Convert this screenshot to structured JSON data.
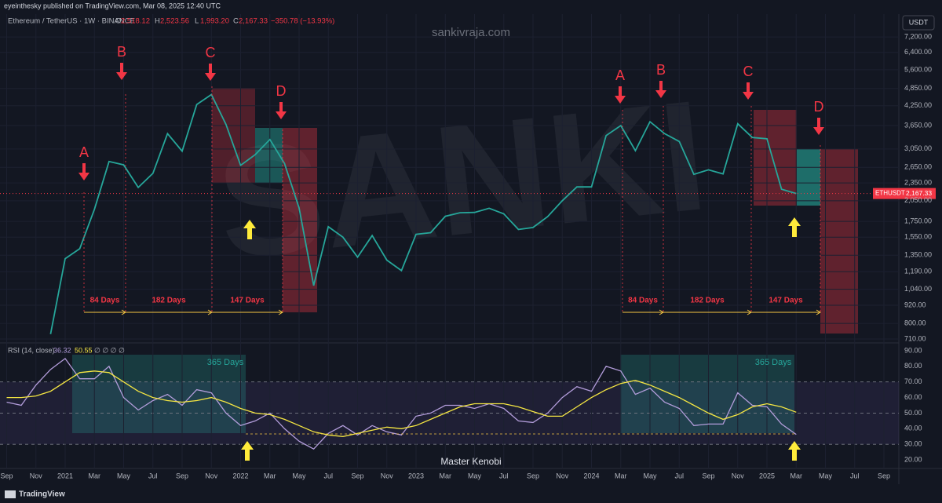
{
  "header": {
    "published": "eyeinthesky published on TradingView.com, Mar 08, 2025 12:40 UTC",
    "symbol": "Ethereum / TetherUS · 1W · BINANCE",
    "ohlc": [
      {
        "key": "O",
        "value": "2,518.12"
      },
      {
        "key": "H",
        "value": "2,523.56"
      },
      {
        "key": "L",
        "value": "1,993.20"
      },
      {
        "key": "C",
        "value": "2,167.33"
      }
    ],
    "change": "−350.78 (−13.93%)",
    "watermark": "sankivraja.com",
    "big_watermark": "SANKI",
    "currency": "USDT",
    "logo": "TradingView"
  },
  "chart_data": [
    {
      "type": "line",
      "log_scale": true,
      "grid": true,
      "x": [
        "2020-12",
        "2021-01",
        "2021-02",
        "2021-03",
        "2021-04",
        "2021-05",
        "2021-06",
        "2021-07",
        "2021-08",
        "2021-09",
        "2021-10",
        "2021-11",
        "2021-12",
        "2022-01",
        "2022-02",
        "2022-03",
        "2022-04",
        "2022-05",
        "2022-06",
        "2022-07",
        "2022-08",
        "2022-09",
        "2022-10",
        "2022-11",
        "2022-12",
        "2023-01",
        "2023-02",
        "2023-03",
        "2023-04",
        "2023-05",
        "2023-06",
        "2023-07",
        "2023-08",
        "2023-09",
        "2023-10",
        "2023-11",
        "2023-12",
        "2024-01",
        "2024-02",
        "2024-03",
        "2024-04",
        "2024-05",
        "2024-06",
        "2024-07",
        "2024-08",
        "2024-09",
        "2024-10",
        "2024-11",
        "2024-12",
        "2025-01",
        "2025-02",
        "2025-03"
      ],
      "series": [
        {
          "name": "ETHUSDT",
          "color": "#26a69a",
          "values": [
            737,
            1315,
            1420,
            1920,
            2770,
            2700,
            2270,
            2530,
            3430,
            3000,
            4290,
            4630,
            3680,
            2690,
            2920,
            3280,
            2730,
            1940,
            1070,
            1680,
            1550,
            1330,
            1570,
            1300,
            1200,
            1585,
            1605,
            1820,
            1870,
            1875,
            1935,
            1855,
            1645,
            1670,
            1815,
            2050,
            2280,
            2280,
            3380,
            3650,
            3010,
            3760,
            3430,
            3230,
            2510,
            2600,
            2520,
            3700,
            3330,
            3300,
            2240,
            2167.33
          ]
        }
      ],
      "price_label": {
        "value": 2167.33,
        "label": "2,167.33"
      },
      "xlim": [
        "2020-09",
        "2025-09"
      ],
      "xticks": [
        {
          "value": "2020-09",
          "label": "Sep"
        },
        {
          "value": "2020-11",
          "label": "Nov"
        },
        {
          "value": "2021-01",
          "label": "2021"
        },
        {
          "value": "2021-03",
          "label": "Mar"
        },
        {
          "value": "2021-05",
          "label": "May"
        },
        {
          "value": "2021-07",
          "label": "Jul"
        },
        {
          "value": "2021-09",
          "label": "Sep"
        },
        {
          "value": "2021-11",
          "label": "Nov"
        },
        {
          "value": "2022-01",
          "label": "2022"
        },
        {
          "value": "2022-03",
          "label": "Mar"
        },
        {
          "value": "2022-05",
          "label": "May"
        },
        {
          "value": "2022-07",
          "label": "Jul"
        },
        {
          "value": "2022-09",
          "label": "Sep"
        },
        {
          "value": "2022-11",
          "label": "Nov"
        },
        {
          "value": "2023-01",
          "label": "2023"
        },
        {
          "value": "2023-03",
          "label": "Mar"
        },
        {
          "value": "2023-05",
          "label": "May"
        },
        {
          "value": "2023-07",
          "label": "Jul"
        },
        {
          "value": "2023-09",
          "label": "Sep"
        },
        {
          "value": "2023-11",
          "label": "Nov"
        },
        {
          "value": "2024-01",
          "label": "2024"
        },
        {
          "value": "2024-03",
          "label": "Mar"
        },
        {
          "value": "2024-05",
          "label": "May"
        },
        {
          "value": "2024-07",
          "label": "Jul"
        },
        {
          "value": "2024-09",
          "label": "Sep"
        },
        {
          "value": "2024-11",
          "label": "Nov"
        },
        {
          "value": "2025-01",
          "label": "2025"
        },
        {
          "value": "2025-03",
          "label": "Mar"
        },
        {
          "value": "2025-05",
          "label": "May"
        },
        {
          "value": "2025-07",
          "label": "Jul"
        },
        {
          "value": "2025-09",
          "label": "Sep"
        }
      ],
      "ylim": [
        689,
        8580
      ],
      "yticks": [
        {
          "value": 7200,
          "label": "7,200.00"
        },
        {
          "value": 6400,
          "label": "6,400.00"
        },
        {
          "value": 5600,
          "label": "5,600.00"
        },
        {
          "value": 4850,
          "label": "4,850.00"
        },
        {
          "value": 4250,
          "label": "4,250.00"
        },
        {
          "value": 3650,
          "label": "3,650.00"
        },
        {
          "value": 3050,
          "label": "3,050.00"
        },
        {
          "value": 2650,
          "label": "2,650.00"
        },
        {
          "value": 2350,
          "label": "2,350.00"
        },
        {
          "value": 2050,
          "label": "2,050.00"
        },
        {
          "value": 1750,
          "label": "1,750.00"
        },
        {
          "value": 1550,
          "label": "1,550.00"
        },
        {
          "value": 1350,
          "label": "1,350.00"
        },
        {
          "value": 1190,
          "label": "1,190.00"
        },
        {
          "value": 1040,
          "label": "1,040.00"
        },
        {
          "value": 920,
          "label": "920.00"
        },
        {
          "value": 800,
          "label": "800.00"
        },
        {
          "value": 710,
          "label": "710.00"
        }
      ],
      "annotations": {
        "letters": [
          "A",
          "B",
          "C",
          "D",
          "A",
          "B",
          "C",
          "D"
        ],
        "durations": [
          "84 Days",
          "182 Days",
          "147 Days",
          "84 Days",
          "182 Days",
          "147 Days"
        ]
      }
    },
    {
      "type": "line",
      "title": "RSI (14, close)",
      "legend_extra": "∅ ∅ ∅ ∅",
      "x": [
        "2020-09",
        "2020-10",
        "2020-11",
        "2020-12",
        "2021-01",
        "2021-02",
        "2021-03",
        "2021-04",
        "2021-05",
        "2021-06",
        "2021-07",
        "2021-08",
        "2021-09",
        "2021-10",
        "2021-11",
        "2021-12",
        "2022-01",
        "2022-02",
        "2022-03",
        "2022-04",
        "2022-05",
        "2022-06",
        "2022-07",
        "2022-08",
        "2022-09",
        "2022-10",
        "2022-11",
        "2022-12",
        "2023-01",
        "2023-02",
        "2023-03",
        "2023-04",
        "2023-05",
        "2023-06",
        "2023-07",
        "2023-08",
        "2023-09",
        "2023-10",
        "2023-11",
        "2023-12",
        "2024-01",
        "2024-02",
        "2024-03",
        "2024-04",
        "2024-05",
        "2024-06",
        "2024-07",
        "2024-08",
        "2024-09",
        "2024-10",
        "2024-11",
        "2024-12",
        "2025-01",
        "2025-02",
        "2025-03"
      ],
      "series": [
        {
          "color": "#b39ddb",
          "values": [
            57,
            55,
            68,
            78,
            85,
            72,
            72,
            80,
            60,
            52,
            58,
            62,
            55,
            65,
            63,
            50,
            42,
            45,
            50,
            40,
            32,
            27,
            37,
            42,
            36,
            42,
            38,
            36,
            48,
            50,
            55,
            55,
            53,
            56,
            53,
            45,
            44,
            50,
            60,
            67,
            64,
            80,
            77,
            62,
            66,
            57,
            53,
            42,
            43,
            43,
            63,
            55,
            54,
            43,
            36.32
          ]
        },
        {
          "color": "#f5e642",
          "values": [
            60,
            60,
            61,
            64,
            70,
            76,
            77,
            76,
            70,
            64,
            60,
            58,
            57,
            58,
            60,
            57,
            53,
            50,
            49,
            46,
            42,
            38,
            36,
            35,
            37,
            39,
            41,
            40,
            42,
            46,
            50,
            54,
            56,
            56,
            56,
            54,
            51,
            48,
            48,
            54,
            60,
            65,
            69,
            71,
            68,
            64,
            60,
            55,
            50,
            46,
            49,
            54,
            56,
            54,
            50.55
          ]
        }
      ],
      "ylim": [
        14.5,
        95
      ],
      "yticks": [
        {
          "value": 20,
          "label": "20.00"
        },
        {
          "value": 30,
          "label": "30.00"
        },
        {
          "value": 40,
          "label": "40.00"
        },
        {
          "value": 50,
          "label": "50.00"
        },
        {
          "value": 60,
          "label": "60.00"
        },
        {
          "value": 70,
          "label": "70.00"
        },
        {
          "value": 80,
          "label": "80.00"
        },
        {
          "value": 90,
          "label": "90.00"
        }
      ],
      "levels": [
        30,
        50,
        70
      ],
      "annotations": {
        "boxes": [
          "365 Days",
          "365 Days"
        ],
        "caption": "Master Kenobi"
      }
    }
  ]
}
